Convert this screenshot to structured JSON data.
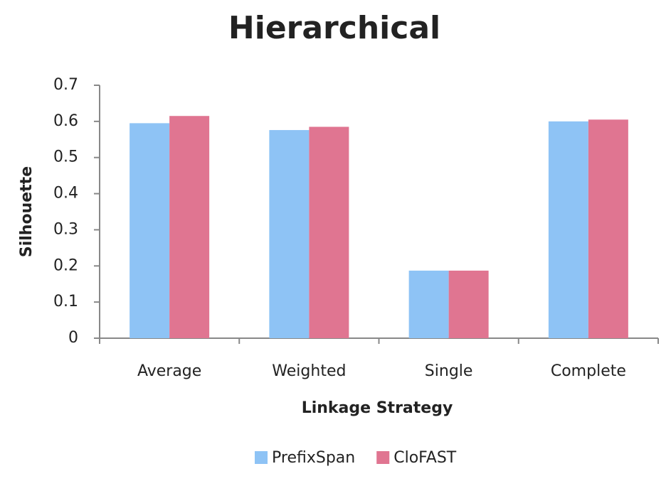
{
  "chart_data": {
    "type": "bar",
    "title": "Hierarchical",
    "x_label": "Linkage Strategy",
    "y_label": "Silhouette",
    "categories": [
      "Average",
      "Weighted",
      "Single",
      "Complete"
    ],
    "series": [
      {
        "name": "PrefixSpan",
        "color": "#8ec3f5",
        "values": [
          0.595,
          0.576,
          0.187,
          0.6
        ]
      },
      {
        "name": "CloFAST",
        "color": "#e07591",
        "values": [
          0.615,
          0.585,
          0.187,
          0.605
        ]
      }
    ],
    "ylim": [
      0,
      0.7
    ],
    "yticks": [
      0,
      0.1,
      0.2,
      0.3,
      0.4,
      0.5,
      0.6,
      0.7
    ],
    "grid": false,
    "legend": "bottom"
  }
}
